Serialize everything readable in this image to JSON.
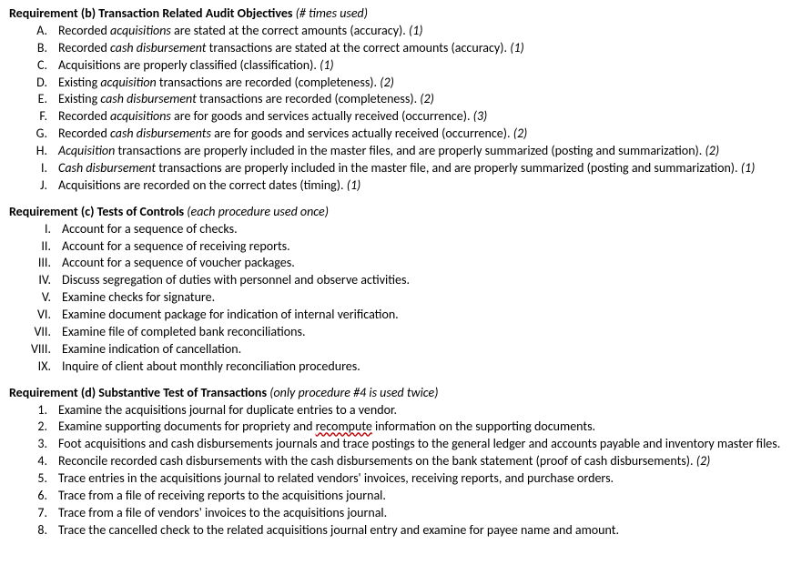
{
  "sections": [
    {
      "title_prefix": "Requirement (b) Transaction Related Audit Objectives",
      "title_note": "(# times used)",
      "marker_class": "marker",
      "items": [
        {
          "marker": "A.",
          "parts": [
            {
              "t": "Recorded "
            },
            {
              "t": "acquisitions",
              "i": true
            },
            {
              "t": " are stated at the correct amounts (accuracy). "
            },
            {
              "t": "(1)",
              "c": true
            }
          ]
        },
        {
          "marker": "B.",
          "parts": [
            {
              "t": "Recorded "
            },
            {
              "t": "cash disbursement",
              "i": true
            },
            {
              "t": " transactions are stated at the correct amounts (accuracy). "
            },
            {
              "t": "(1)",
              "c": true
            }
          ]
        },
        {
          "marker": "C.",
          "parts": [
            {
              "t": "Acquisitions are properly classified (classification). "
            },
            {
              "t": "(1)",
              "c": true
            }
          ]
        },
        {
          "marker": "D.",
          "parts": [
            {
              "t": "Existing "
            },
            {
              "t": "acquisition",
              "i": true
            },
            {
              "t": " transactions are recorded (completeness). "
            },
            {
              "t": "(2)",
              "c": true
            }
          ]
        },
        {
          "marker": "E.",
          "parts": [
            {
              "t": "Existing "
            },
            {
              "t": "cash disbursement",
              "i": true
            },
            {
              "t": " transactions are recorded (completeness). "
            },
            {
              "t": "(2)",
              "c": true
            }
          ]
        },
        {
          "marker": "F.",
          "parts": [
            {
              "t": "Recorded "
            },
            {
              "t": "acquisitions",
              "i": true
            },
            {
              "t": " are for goods and services actually received (occurrence). "
            },
            {
              "t": "(3)",
              "c": true
            }
          ]
        },
        {
          "marker": "G.",
          "parts": [
            {
              "t": "Recorded "
            },
            {
              "t": "cash disbursements",
              "i": true
            },
            {
              "t": " are for goods and services actually received (occurrence). "
            },
            {
              "t": "(2)",
              "c": true
            }
          ]
        },
        {
          "marker": "H.",
          "parts": [
            {
              "t": "Acquisition",
              "i": true
            },
            {
              "t": " transactions are properly included in the master files, and are properly summarized (posting and summarization). "
            },
            {
              "t": "(2)",
              "c": true
            }
          ]
        },
        {
          "marker": "I.",
          "parts": [
            {
              "t": "Cash disbursement",
              "i": true
            },
            {
              "t": " transactions are properly included in the master file, and are properly summarized (posting and summarization). "
            },
            {
              "t": "(1)",
              "c": true
            }
          ]
        },
        {
          "marker": "J.",
          "parts": [
            {
              "t": "Acquisitions are recorded on the correct dates (timing). "
            },
            {
              "t": "(1)",
              "c": true
            }
          ]
        }
      ]
    },
    {
      "title_prefix": "Requirement (c) Tests of Controls",
      "title_note": "(each procedure used once)",
      "marker_class": "marker wide",
      "items": [
        {
          "marker": "I.",
          "parts": [
            {
              "t": "Account for a sequence of checks."
            }
          ]
        },
        {
          "marker": "II.",
          "parts": [
            {
              "t": "Account for a sequence of receiving reports."
            }
          ]
        },
        {
          "marker": "III.",
          "parts": [
            {
              "t": "Account for a sequence of voucher packages."
            }
          ]
        },
        {
          "marker": "IV.",
          "parts": [
            {
              "t": "Discuss segregation of duties with personnel and observe activities."
            }
          ]
        },
        {
          "marker": "V.",
          "parts": [
            {
              "t": "Examine checks for signature."
            }
          ]
        },
        {
          "marker": "VI.",
          "parts": [
            {
              "t": "Examine document package for indication of internal verification."
            }
          ]
        },
        {
          "marker": "VII.",
          "parts": [
            {
              "t": "Examine file of completed bank reconciliations."
            }
          ]
        },
        {
          "marker": "VIII.",
          "parts": [
            {
              "t": "Examine indication of cancellation."
            }
          ]
        },
        {
          "marker": "IX.",
          "parts": [
            {
              "t": "Inquire of client about monthly reconciliation procedures."
            }
          ]
        }
      ]
    },
    {
      "title_prefix": "Requirement (d) Substantive Test of Transactions",
      "title_note": "(only procedure #4 is used twice)",
      "marker_class": "marker",
      "items": [
        {
          "marker": "1.",
          "parts": [
            {
              "t": "Examine the acquisitions journal for duplicate entries to a vendor."
            }
          ]
        },
        {
          "marker": "2.",
          "parts": [
            {
              "t": "Examine supporting documents for propriety and "
            },
            {
              "t": "recompute",
              "s": true
            },
            {
              "t": " information on the supporting documents."
            }
          ]
        },
        {
          "marker": "3.",
          "parts": [
            {
              "t": "Foot acquisitions and cash disbursements journals and trace postings to the general ledger and accounts payable and inventory master files."
            }
          ]
        },
        {
          "marker": "4.",
          "parts": [
            {
              "t": "Reconcile recorded cash disbursements with the cash disbursements on the bank statement (proof of cash disbursements). "
            },
            {
              "t": "(2)",
              "c": true
            }
          ]
        },
        {
          "marker": "5.",
          "parts": [
            {
              "t": "Trace entries in the acquisitions journal to related vendors' invoices, receiving reports, and purchase orders."
            }
          ]
        },
        {
          "marker": "6.",
          "parts": [
            {
              "t": "Trace from a file of receiving reports to the acquisitions journal."
            }
          ]
        },
        {
          "marker": "7.",
          "parts": [
            {
              "t": "Trace from a file of vendors' invoices to the acquisitions journal."
            }
          ]
        },
        {
          "marker": "8.",
          "parts": [
            {
              "t": "Trace the cancelled check to the related acquisitions journal entry and examine for payee name and amount."
            }
          ]
        }
      ]
    }
  ]
}
